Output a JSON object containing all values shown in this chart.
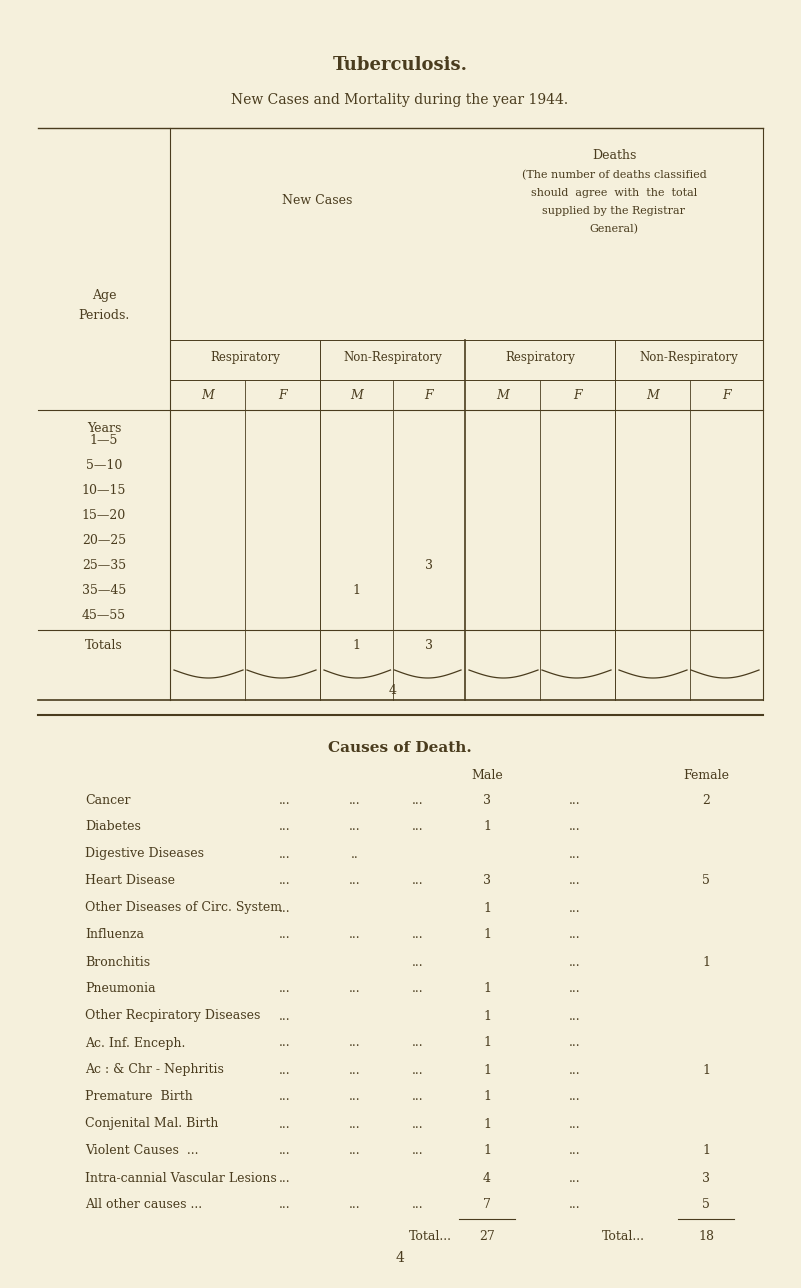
{
  "title": "Tuberculosis.",
  "subtitle": "New Cases and Mortality during the year 1944.",
  "bg_color": "#f5f0dc",
  "text_color": "#4a3c1e",
  "page_number": "4",
  "top_table": {
    "age_rows": [
      "1—5",
      "5—10",
      "10—15",
      "15—20",
      "20—25",
      "25—35",
      "35—45",
      "45—55"
    ],
    "totals_label": "Totals",
    "new_cases_data": {
      "non_resp_M_25_35": "1",
      "non_resp_F_25_35": "3"
    },
    "totals_row": {
      "non_resp_M": "1",
      "non_resp_F": "3"
    },
    "totals_brace": "4"
  },
  "causes_title": "Causes of Death.",
  "male_label": "Male",
  "female_label": "Female",
  "causes": [
    {
      "name": "Cancer",
      "d1": "...",
      "d2": "...",
      "d3": "...",
      "male": "3",
      "d4": "...",
      "female": "2"
    },
    {
      "name": "Diabetes",
      "d1": "...",
      "d2": "...",
      "d3": "...",
      "male": "1",
      "d4": "...",
      "female": ""
    },
    {
      "name": "Digestive Diseases",
      "d1": "...",
      "d2": "..",
      "d3": "",
      "male": "",
      "d4": "...",
      "female": ""
    },
    {
      "name": "Heart Disease",
      "d1": "...",
      "d2": "...",
      "d3": "...",
      "male": "3",
      "d4": "...",
      "female": "5"
    },
    {
      "name": "Other Diseases of Circ. System",
      "d1": "...",
      "d2": "",
      "d3": "",
      "male": "1",
      "d4": "...",
      "female": ""
    },
    {
      "name": "Influenza",
      "d1": "...",
      "d2": "...",
      "d3": "...",
      "male": "1",
      "d4": "...",
      "female": ""
    },
    {
      "name": "Bronchitis",
      "d1": "",
      "d2": "",
      "d3": "...",
      "male": "",
      "d4": "...",
      "female": "1"
    },
    {
      "name": "Pneumonia",
      "d1": "...",
      "d2": "...",
      "d3": "...",
      "male": "1",
      "d4": "...",
      "female": ""
    },
    {
      "name": "Other Recpiratory Diseases",
      "d1": "...",
      "d2": "",
      "d3": "",
      "male": "1",
      "d4": "...",
      "female": ""
    },
    {
      "name": "Ac. Inf. Enceph.",
      "d1": "...",
      "d2": "...",
      "d3": "...",
      "male": "1",
      "d4": "...",
      "female": ""
    },
    {
      "name": "Ac : & Chr - Nephritis",
      "d1": "...",
      "d2": "...",
      "d3": "...",
      "male": "1",
      "d4": "...",
      "female": "1"
    },
    {
      "name": "Premature  Birth",
      "d1": "...",
      "d2": "...",
      "d3": "...",
      "male": "1",
      "d4": "...",
      "female": ""
    },
    {
      "name": "Conjenital Mal. Birth",
      "d1": "...",
      "d2": "...",
      "d3": "...",
      "male": "1",
      "d4": "...",
      "female": ""
    },
    {
      "name": "Violent Causes  ...",
      "d1": "...",
      "d2": "...",
      "d3": "...",
      "male": "1",
      "d4": "...",
      "female": "1"
    },
    {
      "name": "Intra-cannial Vascular Lesions",
      "d1": "...",
      "d2": "",
      "d3": "",
      "male": "4",
      "d4": "...",
      "female": "3"
    },
    {
      "name": "All other causes ...",
      "d1": "...",
      "d2": "...",
      "d3": "...",
      "male": "7",
      "d4": "...",
      "female": "5"
    }
  ],
  "total_male": "27",
  "total_female": "18"
}
